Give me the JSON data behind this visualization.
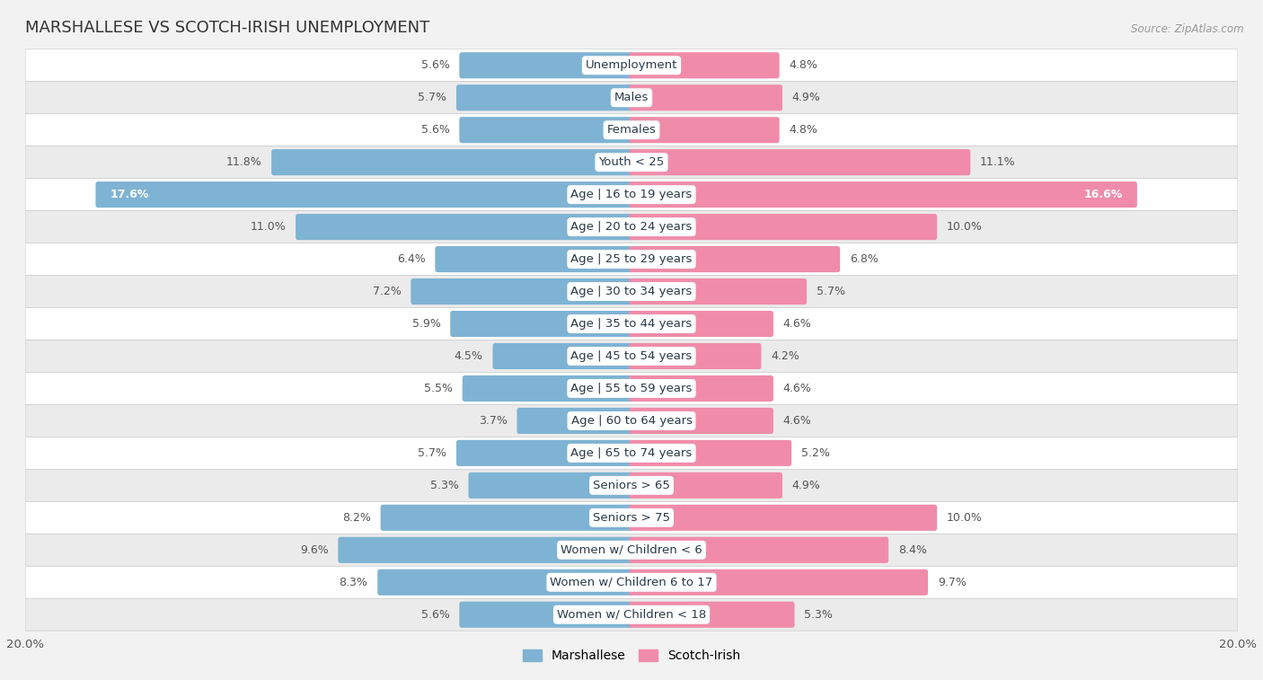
{
  "title": "MARSHALLESE VS SCOTCH-IRISH UNEMPLOYMENT",
  "source": "Source: ZipAtlas.com",
  "categories": [
    "Unemployment",
    "Males",
    "Females",
    "Youth < 25",
    "Age | 16 to 19 years",
    "Age | 20 to 24 years",
    "Age | 25 to 29 years",
    "Age | 30 to 34 years",
    "Age | 35 to 44 years",
    "Age | 45 to 54 years",
    "Age | 55 to 59 years",
    "Age | 60 to 64 years",
    "Age | 65 to 74 years",
    "Seniors > 65",
    "Seniors > 75",
    "Women w/ Children < 6",
    "Women w/ Children 6 to 17",
    "Women w/ Children < 18"
  ],
  "marshallese": [
    5.6,
    5.7,
    5.6,
    11.8,
    17.6,
    11.0,
    6.4,
    7.2,
    5.9,
    4.5,
    5.5,
    3.7,
    5.7,
    5.3,
    8.2,
    9.6,
    8.3,
    5.6
  ],
  "scotch_irish": [
    4.8,
    4.9,
    4.8,
    11.1,
    16.6,
    10.0,
    6.8,
    5.7,
    4.6,
    4.2,
    4.6,
    4.6,
    5.2,
    4.9,
    10.0,
    8.4,
    9.7,
    5.3
  ],
  "marshallese_color": "#7fb3d3",
  "scotch_irish_color": "#f08caa",
  "max_val": 20.0,
  "bg_color": "#f2f2f2",
  "row_colors": [
    "#ffffff",
    "#ebebeb"
  ],
  "title_fontsize": 13,
  "label_fontsize": 9.5,
  "value_fontsize": 9,
  "legend_fontsize": 10
}
